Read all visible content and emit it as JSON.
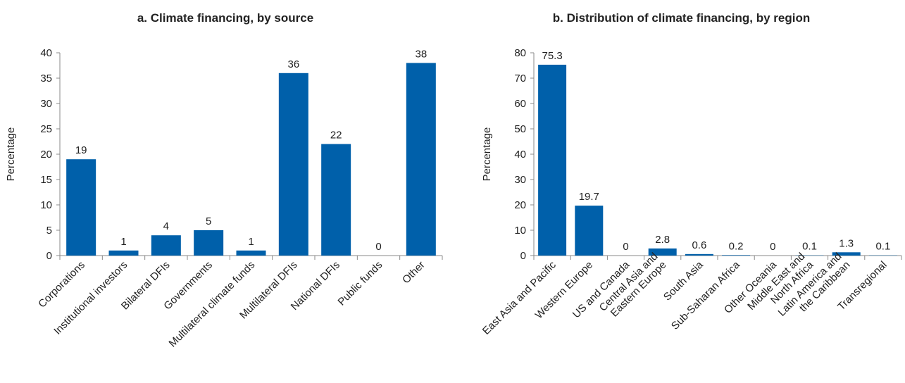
{
  "charts_colors": {
    "bar": "#0060AA",
    "axis": "#888888",
    "text": "#222222"
  },
  "chart_data": [
    {
      "type": "bar",
      "title": "a. Climate financing, by source",
      "xlabel": "",
      "ylabel": "Percentage",
      "ylim": [
        0,
        40
      ],
      "yticks": [
        0,
        5,
        10,
        15,
        20,
        25,
        30,
        35,
        40
      ],
      "grid": false,
      "categories": [
        "Corporations",
        "Institutional investors",
        "Bilateral DFIs",
        "Governments",
        "Multilateral climate funds",
        "Multilateral DFIs",
        "National DFIs",
        "Public funds",
        "Other"
      ],
      "values": [
        19,
        1,
        4,
        5,
        1,
        36,
        22,
        0,
        38
      ],
      "data_labels": [
        "19",
        "1",
        "4",
        "5",
        "1",
        "36",
        "22",
        "0",
        "38"
      ]
    },
    {
      "type": "bar",
      "title": "b. Distribution of climate financing, by region",
      "xlabel": "",
      "ylabel": "Percentage",
      "ylim": [
        0,
        80
      ],
      "yticks": [
        0,
        10,
        20,
        30,
        40,
        50,
        60,
        70,
        80
      ],
      "grid": false,
      "categories": [
        [
          "East Asia and Pacific"
        ],
        [
          "Western Europe"
        ],
        [
          "US and Canada"
        ],
        [
          "Central Asia and",
          "Eastern Europe"
        ],
        [
          "South Asia"
        ],
        [
          "Sub-Saharan Africa"
        ],
        [
          "Other Oceania"
        ],
        [
          "Middle East and",
          "North Africa"
        ],
        [
          "Latin America and",
          "the Caribbean"
        ],
        [
          "Transregional"
        ]
      ],
      "values": [
        75.3,
        19.7,
        0,
        2.8,
        0.6,
        0.2,
        0,
        0.1,
        1.3,
        0.1
      ],
      "data_labels": [
        "75.3",
        "19.7",
        "0",
        "2.8",
        "0.6",
        "0.2",
        "0",
        "0.1",
        "1.3",
        "0.1"
      ]
    }
  ]
}
